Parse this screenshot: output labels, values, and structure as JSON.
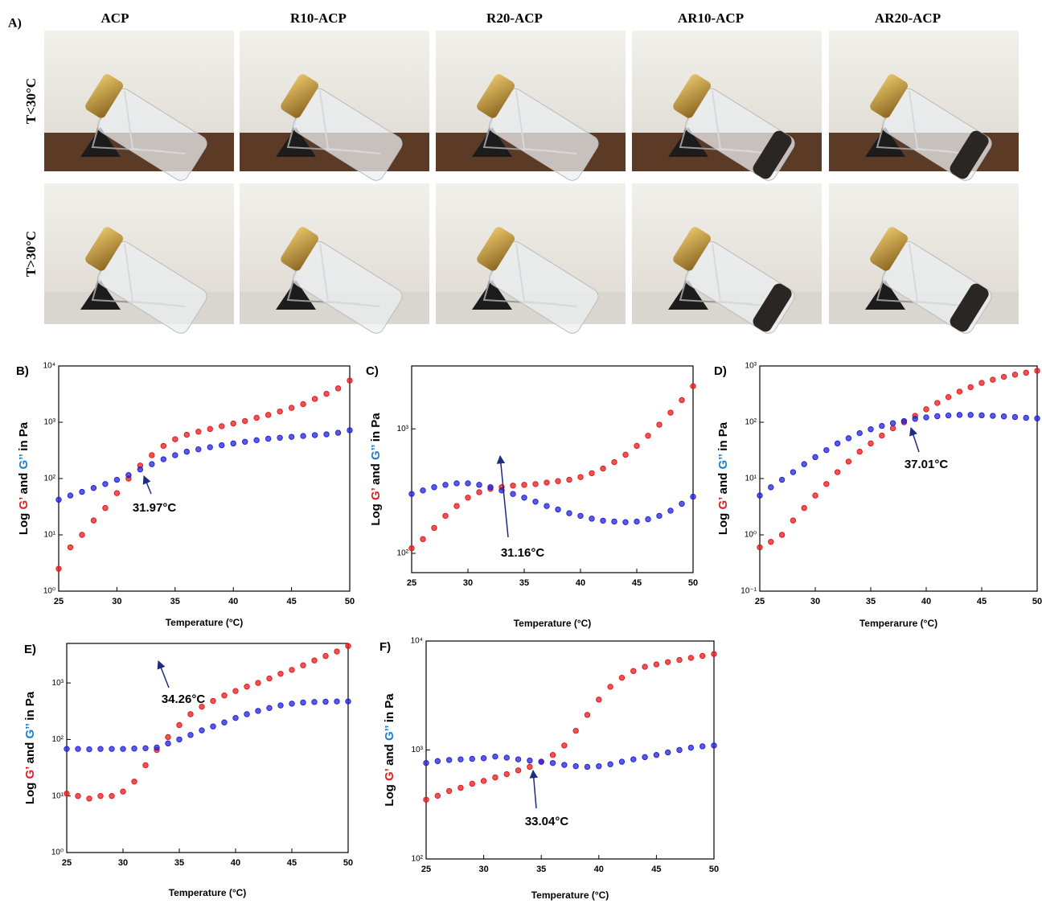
{
  "photo_panel": {
    "label": "A)",
    "columns": [
      "ACP",
      "R10-ACP",
      "R20-ACP",
      "AR10-ACP",
      "AR20-ACP"
    ],
    "rows": [
      "T<30°C",
      "T>30°C"
    ]
  },
  "chart_data": [
    {
      "type": "scatter",
      "panel_label": "B)",
      "xlabel": "Temperature (°C)",
      "ylabel_parts": [
        {
          "text": "Log ",
          "color": "#000000"
        },
        {
          "text": "G’",
          "color": "#e02020"
        },
        {
          "text": " and ",
          "color": "#000000"
        },
        {
          "text": "G’’",
          "color": "#1a7fd0"
        },
        {
          "text": " in Pa",
          "color": "#000000"
        }
      ],
      "annotation": "31.97°C",
      "log_y": true,
      "x": [
        25,
        26,
        27,
        28,
        29,
        30,
        31,
        32,
        33,
        34,
        35,
        36,
        37,
        38,
        39,
        40,
        41,
        42,
        43,
        44,
        45,
        46,
        47,
        48,
        49,
        50
      ],
      "xlim": [
        25,
        50
      ],
      "xticks": [
        25,
        30,
        35,
        40,
        45,
        50
      ],
      "ylim": [
        1,
        10000
      ],
      "yticks": [
        {
          "value": 1,
          "label": "10⁰"
        },
        {
          "value": 10,
          "label": "10¹"
        },
        {
          "value": 100,
          "label": "10²"
        },
        {
          "value": 1000,
          "label": "10³"
        },
        {
          "value": 10000,
          "label": "10⁴"
        }
      ],
      "series": [
        {
          "color": "#e41a1c",
          "values": [
            2.5,
            6,
            10,
            18,
            30,
            55,
            100,
            170,
            260,
            380,
            500,
            600,
            680,
            760,
            850,
            950,
            1050,
            1200,
            1350,
            1550,
            1800,
            2100,
            2600,
            3200,
            4000,
            5500
          ]
        },
        {
          "color": "#2323d8",
          "values": [
            42,
            50,
            58,
            68,
            80,
            95,
            115,
            145,
            180,
            220,
            260,
            300,
            330,
            360,
            390,
            420,
            450,
            480,
            510,
            530,
            550,
            570,
            590,
            610,
            650,
            720
          ]
        }
      ]
    },
    {
      "type": "scatter",
      "panel_label": "C)",
      "xlabel": "Temperature (°C)",
      "ylabel_parts": [
        {
          "text": "Log ",
          "color": "#000000"
        },
        {
          "text": "G’",
          "color": "#e02020"
        },
        {
          "text": " and ",
          "color": "#000000"
        },
        {
          "text": "G’’",
          "color": "#1a7fd0"
        },
        {
          "text": " in Pa",
          "color": "#000000"
        }
      ],
      "annotation": "31.16°C",
      "log_y": true,
      "x": [
        25,
        26,
        27,
        28,
        29,
        30,
        31,
        32,
        33,
        34,
        35,
        36,
        37,
        38,
        39,
        40,
        41,
        42,
        43,
        44,
        45,
        46,
        47,
        48,
        49,
        50
      ],
      "xlim": [
        25,
        50
      ],
      "xticks": [
        25,
        30,
        35,
        40,
        45,
        50
      ],
      "ylim": [
        70,
        3200
      ],
      "yticks": [
        {
          "value": 100,
          "label": "10²"
        },
        {
          "value": 1000,
          "label": "10³"
        }
      ],
      "series": [
        {
          "color": "#e41a1c",
          "values": [
            110,
            130,
            160,
            200,
            240,
            280,
            310,
            330,
            340,
            350,
            355,
            360,
            370,
            380,
            390,
            410,
            440,
            480,
            540,
            620,
            730,
            880,
            1080,
            1350,
            1700,
            2200
          ]
        },
        {
          "color": "#2323d8",
          "values": [
            300,
            320,
            340,
            355,
            365,
            365,
            355,
            340,
            320,
            300,
            280,
            260,
            240,
            225,
            210,
            200,
            190,
            183,
            180,
            178,
            180,
            188,
            200,
            220,
            250,
            285
          ]
        }
      ]
    },
    {
      "type": "scatter",
      "panel_label": "D)",
      "xlabel": "Temperarure (°C)",
      "ylabel_parts": [
        {
          "text": "Log ",
          "color": "#000000"
        },
        {
          "text": "G’",
          "color": "#e02020"
        },
        {
          "text": " and ",
          "color": "#000000"
        },
        {
          "text": "G’’",
          "color": "#1a7fd0"
        },
        {
          "text": " in Pa",
          "color": "#000000"
        }
      ],
      "annotation": "37.01°C",
      "log_y": true,
      "x": [
        25,
        26,
        27,
        28,
        29,
        30,
        31,
        32,
        33,
        34,
        35,
        36,
        37,
        38,
        39,
        40,
        41,
        42,
        43,
        44,
        45,
        46,
        47,
        48,
        49,
        50
      ],
      "xlim": [
        25,
        50
      ],
      "xticks": [
        25,
        30,
        35,
        40,
        45,
        50
      ],
      "ylim": [
        0.1,
        1000
      ],
      "yticks": [
        {
          "value": 0.1,
          "label": "10⁻¹"
        },
        {
          "value": 1,
          "label": "10⁰"
        },
        {
          "value": 10,
          "label": "10¹"
        },
        {
          "value": 100,
          "label": "10²"
        },
        {
          "value": 1000,
          "label": "10³"
        }
      ],
      "series": [
        {
          "color": "#e41a1c",
          "values": [
            0.6,
            0.75,
            1.0,
            1.8,
            3,
            5,
            8,
            13,
            20,
            30,
            42,
            58,
            78,
            100,
            130,
            170,
            220,
            280,
            350,
            420,
            500,
            570,
            640,
            700,
            760,
            820
          ]
        },
        {
          "color": "#2323d8",
          "values": [
            5,
            7,
            9.5,
            13,
            18,
            24,
            32,
            42,
            52,
            64,
            75,
            86,
            96,
            105,
            115,
            122,
            128,
            132,
            135,
            135,
            133,
            130,
            127,
            124,
            120,
            117
          ]
        }
      ]
    },
    {
      "type": "scatter",
      "panel_label": "E)",
      "xlabel": "Temperature (°C)",
      "ylabel_parts": [
        {
          "text": "Log ",
          "color": "#000000"
        },
        {
          "text": "G’",
          "color": "#e02020"
        },
        {
          "text": " and ",
          "color": "#000000"
        },
        {
          "text": "G’’",
          "color": "#1a7fd0"
        },
        {
          "text": " in Pa",
          "color": "#000000"
        }
      ],
      "annotation": "34.26°C",
      "log_y": true,
      "x": [
        25,
        26,
        27,
        28,
        29,
        30,
        31,
        32,
        33,
        34,
        35,
        36,
        37,
        38,
        39,
        40,
        41,
        42,
        43,
        44,
        45,
        46,
        47,
        48,
        49,
        50
      ],
      "xlim": [
        25,
        50
      ],
      "xticks": [
        25,
        30,
        35,
        40,
        45,
        50
      ],
      "ylim": [
        1,
        5000
      ],
      "yticks": [
        {
          "value": 1,
          "label": "10⁰"
        },
        {
          "value": 10,
          "label": "10¹"
        },
        {
          "value": 100,
          "label": "10²"
        },
        {
          "value": 1000,
          "label": "10³"
        }
      ],
      "series": [
        {
          "color": "#e41a1c",
          "values": [
            11,
            10,
            9,
            10,
            10,
            12,
            18,
            35,
            65,
            110,
            180,
            280,
            380,
            480,
            600,
            720,
            860,
            1000,
            1200,
            1450,
            1700,
            2050,
            2500,
            3000,
            3600,
            4500
          ]
        },
        {
          "color": "#2323d8",
          "values": [
            68,
            68,
            67,
            68,
            68,
            68,
            69,
            70,
            72,
            85,
            100,
            120,
            145,
            170,
            200,
            240,
            280,
            320,
            360,
            400,
            430,
            450,
            460,
            465,
            470,
            470
          ]
        }
      ]
    },
    {
      "type": "scatter",
      "panel_label": "F)",
      "xlabel": "Temperature (°C)",
      "ylabel_parts": [
        {
          "text": "Log ",
          "color": "#000000"
        },
        {
          "text": "G’",
          "color": "#e02020"
        },
        {
          "text": " and ",
          "color": "#000000"
        },
        {
          "text": "G’’",
          "color": "#1a7fd0"
        },
        {
          "text": " in Pa",
          "color": "#000000"
        }
      ],
      "annotation": "33.04°C",
      "log_y": true,
      "x": [
        25,
        26,
        27,
        28,
        29,
        30,
        31,
        32,
        33,
        34,
        35,
        36,
        37,
        38,
        39,
        40,
        41,
        42,
        43,
        44,
        45,
        46,
        47,
        48,
        49,
        50
      ],
      "xlim": [
        25,
        50
      ],
      "xticks": [
        25,
        30,
        35,
        40,
        45,
        50
      ],
      "ylim": [
        100,
        10000
      ],
      "yticks": [
        {
          "value": 100,
          "label": "10²"
        },
        {
          "value": 1000,
          "label": "10³"
        },
        {
          "value": 10000,
          "label": "10⁴"
        }
      ],
      "series": [
        {
          "color": "#e41a1c",
          "values": [
            350,
            380,
            420,
            450,
            490,
            520,
            560,
            600,
            650,
            700,
            780,
            900,
            1100,
            1500,
            2100,
            2900,
            3800,
            4600,
            5300,
            5800,
            6100,
            6400,
            6700,
            7000,
            7300,
            7600
          ]
        },
        {
          "color": "#2323d8",
          "values": [
            760,
            790,
            810,
            820,
            830,
            840,
            870,
            850,
            820,
            800,
            780,
            760,
            730,
            710,
            700,
            710,
            740,
            780,
            820,
            860,
            900,
            950,
            1000,
            1050,
            1080,
            1100
          ]
        }
      ]
    }
  ]
}
